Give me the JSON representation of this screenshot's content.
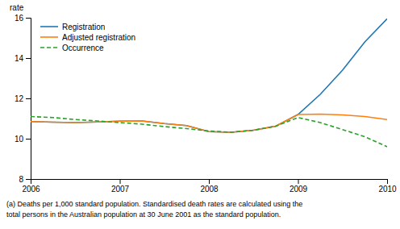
{
  "chart_data": {
    "type": "line",
    "y_label": "rate",
    "x": [
      2006,
      2006.25,
      2006.5,
      2006.75,
      2007,
      2007.25,
      2007.5,
      2007.75,
      2008,
      2008.25,
      2008.5,
      2008.75,
      2009,
      2009.25,
      2009.5,
      2009.75,
      2010
    ],
    "series": [
      {
        "name": "Registration",
        "line_style": "solid",
        "values": [
          10.85,
          10.82,
          10.8,
          10.83,
          10.87,
          10.88,
          10.75,
          10.65,
          10.35,
          10.32,
          10.42,
          10.62,
          11.2,
          12.2,
          13.4,
          14.8,
          15.95
        ]
      },
      {
        "name": "Adjusted registration",
        "line_style": "solid",
        "values": [
          10.85,
          10.82,
          10.8,
          10.83,
          10.87,
          10.88,
          10.75,
          10.65,
          10.35,
          10.32,
          10.42,
          10.62,
          11.2,
          11.22,
          11.18,
          11.1,
          10.95
        ]
      },
      {
        "name": "Occurrence",
        "line_style": "dashed",
        "values": [
          11.1,
          11.05,
          10.95,
          10.88,
          10.8,
          10.72,
          10.6,
          10.5,
          10.38,
          10.32,
          10.42,
          10.62,
          11.05,
          10.8,
          10.45,
          10.1,
          9.6
        ]
      }
    ],
    "xlim": [
      2006,
      2010
    ],
    "ylim": [
      8,
      16
    ],
    "xticks": [
      2006,
      2007,
      2008,
      2009,
      2010
    ],
    "yticks": [
      8,
      10,
      12,
      14,
      16
    ],
    "grid": false,
    "legend": "upper left",
    "annotations": [
      "(a) Deaths per 1,000 standard population. Standardised death rates are calculated using the",
      "total persons in the Australian population at 30 June 2001 as the standard population."
    ]
  }
}
